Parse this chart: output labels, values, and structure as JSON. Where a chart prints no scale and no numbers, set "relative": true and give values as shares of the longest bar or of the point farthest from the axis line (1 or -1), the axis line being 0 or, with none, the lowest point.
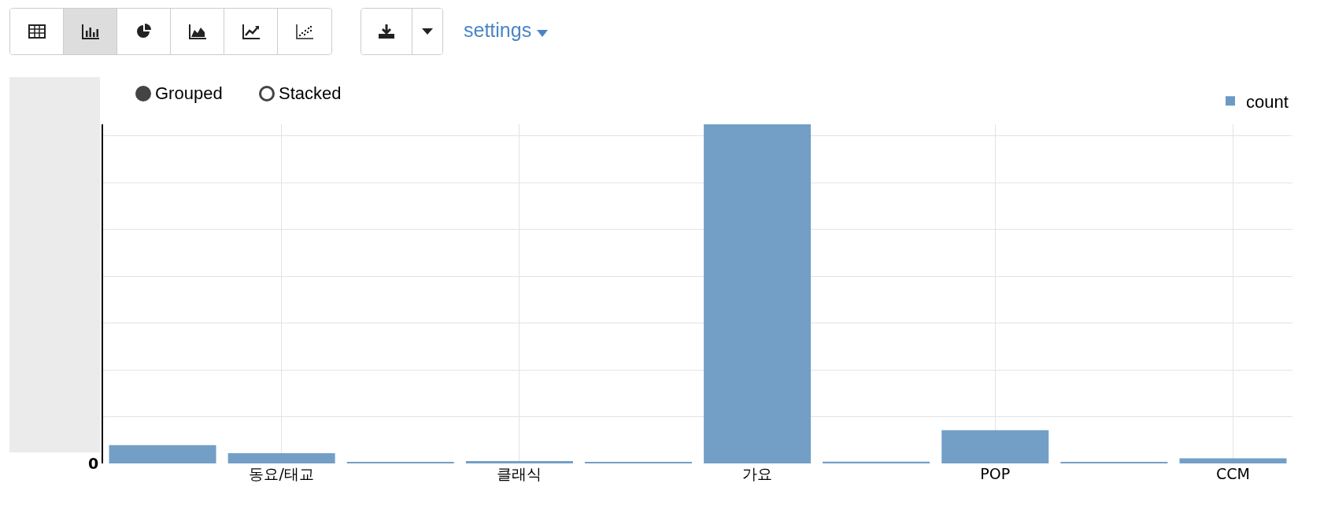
{
  "chart_data": {
    "type": "bar",
    "categories": [
      null,
      "동요/태교",
      null,
      "클래식",
      null,
      "가요",
      null,
      "POP",
      null,
      "CCM"
    ],
    "series": [
      {
        "name": "count",
        "color": "#6b9ac4",
        "values": [
          0.054,
          0.03,
          0.004,
          0.007,
          0.004,
          1,
          0.005,
          0.098,
          0.004,
          0.015
        ]
      }
    ],
    "relative": true,
    "grid": true,
    "legend": "top right",
    "annotations": [
      "settings",
      "Grouped",
      "Stacked",
      "0"
    ]
  }
}
